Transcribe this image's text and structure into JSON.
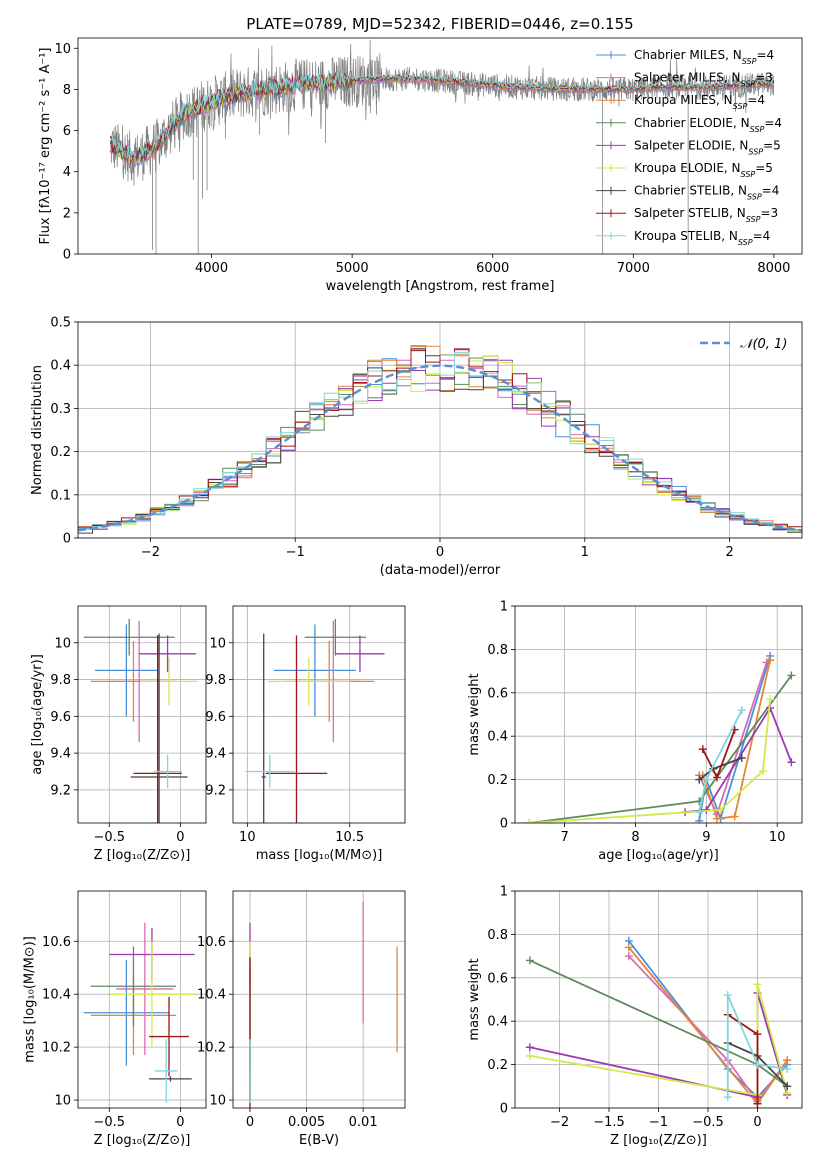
{
  "figure": {
    "title": "PLATE=0789, MJD=52342, FIBERID=0446, z=0.155",
    "colors": {
      "chabrier_miles": "#4a8fd8",
      "salpeter_miles": "#d96bb0",
      "kroupa_miles": "#e2863a",
      "chabrier_elodie": "#5e8a5e",
      "salpeter_elodie": "#9a3bb3",
      "kroupa_elodie": "#d4e84a",
      "chabrier_stelib": "#444444",
      "salpeter_stelib": "#a01515",
      "kroupa_stelib": "#7fd6de",
      "data": "#808080",
      "normal": "#5b8fd4",
      "grid": "#b0b0b0"
    }
  },
  "chart_data": [
    {
      "id": "spectrum",
      "type": "line",
      "title": "PLATE=0789, MJD=52342, FIBERID=0446, z=0.155",
      "xlabel": "wavelength [Angstrom, rest frame]",
      "ylabel": "Flux [fλ10⁻¹⁷ erg cm⁻² s⁻¹ A⁻¹]",
      "xlim": [
        3050,
        8200
      ],
      "ylim": [
        0,
        10.5
      ],
      "xticks": [
        4000,
        5000,
        6000,
        7000,
        8000
      ],
      "yticks": [
        0,
        2,
        4,
        6,
        8,
        10
      ],
      "grid": false,
      "legend_position": "right",
      "legend": [
        {
          "base": "Chabrier MILES, N",
          "sub": "SSP",
          "tail": "=4",
          "color": "chabrier_miles"
        },
        {
          "base": "Salpeter MILES, N",
          "sub": "SSP",
          "tail": "=3",
          "color": "salpeter_miles"
        },
        {
          "base": "Kroupa MILES, N",
          "sub": "SSP",
          "tail": "=4",
          "color": "kroupa_miles"
        },
        {
          "base": "Chabrier ELODIE, N",
          "sub": "SSP",
          "tail": "=4",
          "color": "chabrier_elodie"
        },
        {
          "base": "Salpeter ELODIE, N",
          "sub": "SSP",
          "tail": "=5",
          "color": "salpeter_elodie"
        },
        {
          "base": "Kroupa ELODIE, N",
          "sub": "SSP",
          "tail": "=5",
          "color": "kroupa_elodie"
        },
        {
          "base": "Chabrier STELIB, N",
          "sub": "SSP",
          "tail": "=4",
          "color": "chabrier_stelib"
        },
        {
          "base": "Salpeter STELIB, N",
          "sub": "SSP",
          "tail": "=3",
          "color": "salpeter_stelib"
        },
        {
          "base": "Kroupa STELIB, N",
          "sub": "SSP",
          "tail": "=4",
          "color": "kroupa_stelib"
        }
      ],
      "continuum": [
        [
          3280,
          5.3
        ],
        [
          3450,
          4.6
        ],
        [
          3600,
          5.2
        ],
        [
          3700,
          6.0
        ],
        [
          3800,
          6.8
        ],
        [
          3900,
          7.1
        ],
        [
          4000,
          7.4
        ],
        [
          4200,
          7.8
        ],
        [
          4400,
          8.0
        ],
        [
          4600,
          8.2
        ],
        [
          4800,
          8.3
        ],
        [
          5000,
          8.4
        ],
        [
          5200,
          8.5
        ],
        [
          5500,
          8.5
        ],
        [
          5800,
          8.3
        ],
        [
          6000,
          8.2
        ],
        [
          6200,
          8.1
        ],
        [
          6500,
          8.0
        ],
        [
          6800,
          8.0
        ],
        [
          7000,
          8.0
        ],
        [
          7200,
          8.1
        ],
        [
          7500,
          8.1
        ],
        [
          7800,
          8.2
        ],
        [
          8000,
          8.3
        ]
      ],
      "absorption_lines": [
        [
          3580,
          0.2
        ],
        [
          3605,
          0.0
        ],
        [
          3870,
          3.6
        ],
        [
          3905,
          0.0
        ],
        [
          3935,
          2.7
        ],
        [
          3968,
          3.1
        ],
        [
          4100,
          5.6
        ],
        [
          4340,
          5.8
        ],
        [
          4810,
          5.4
        ],
        [
          6780,
          0.0
        ],
        [
          7390,
          0.0
        ]
      ]
    },
    {
      "id": "residuals",
      "type": "histogram",
      "xlabel": "(data-model)/error",
      "ylabel": "Normed distribution",
      "xlim": [
        -2.5,
        2.5
      ],
      "ylim": [
        0,
        0.5
      ],
      "xticks": [
        -2,
        -1,
        0,
        1,
        2
      ],
      "yticks": [
        0.0,
        0.1,
        0.2,
        0.3,
        0.4,
        0.5
      ],
      "grid": true,
      "legend_position": "top-right",
      "normal_label": "𝒩(0, 1)",
      "bin_width": 0.1
    },
    {
      "id": "age_vs_Z",
      "type": "scatter",
      "xlabel": "Z [log₁₀(Z/Z⊙)]",
      "ylabel": "age  [log₁₀(age/yr)]",
      "xlim": [
        -0.72,
        0.18
      ],
      "ylim": [
        9.02,
        10.2
      ],
      "xticks": [
        -0.5,
        0.0
      ],
      "yticks": [
        9.2,
        9.4,
        9.6,
        9.8,
        10.0
      ],
      "grid": true,
      "points": [
        {
          "model": "chabrier_miles",
          "x": -0.38,
          "y": 9.85,
          "xerr": 0.22,
          "yerr": 0.25
        },
        {
          "model": "salpeter_miles",
          "x": -0.29,
          "y": 9.79,
          "xerr": 0.2,
          "yerr": 0.33
        },
        {
          "model": "kroupa_miles",
          "x": -0.33,
          "y": 9.79,
          "xerr": 0.3,
          "yerr": 0.22
        },
        {
          "model": "chabrier_elodie",
          "x": -0.36,
          "y": 10.03,
          "xerr": 0.32,
          "yerr": 0.1
        },
        {
          "model": "salpeter_elodie",
          "x": -0.09,
          "y": 9.94,
          "xerr": 0.2,
          "yerr": 0.1
        },
        {
          "model": "kroupa_elodie",
          "x": -0.08,
          "y": 9.79,
          "xerr": 0.2,
          "yerr": 0.13
        },
        {
          "model": "chabrier_stelib",
          "x": -0.15,
          "y": 9.27,
          "xerr": 0.2,
          "yerr": 0.78
        },
        {
          "model": "salpeter_stelib",
          "x": -0.16,
          "y": 9.29,
          "xerr": 0.17,
          "yerr": 0.75
        },
        {
          "model": "kroupa_stelib",
          "x": -0.09,
          "y": 9.3,
          "xerr": 0.1,
          "yerr": 0.09
        }
      ]
    },
    {
      "id": "age_vs_mass",
      "type": "scatter",
      "xlabel": "mass [log₁₀(M/M⊙)]",
      "ylabel": "",
      "xlim": [
        9.93,
        10.77
      ],
      "ylim": [
        9.02,
        10.2
      ],
      "xticks": [
        10.0,
        10.5
      ],
      "yticks": [
        9.2,
        9.4,
        9.6,
        9.8,
        10.0
      ],
      "grid": true,
      "points": [
        {
          "model": "chabrier_miles",
          "x": 10.33,
          "y": 9.85,
          "xerr": 0.2,
          "yerr": 0.25
        },
        {
          "model": "salpeter_miles",
          "x": 10.42,
          "y": 9.79,
          "xerr": 0.12,
          "yerr": 0.33
        },
        {
          "model": "kroupa_miles",
          "x": 10.4,
          "y": 9.79,
          "xerr": 0.22,
          "yerr": 0.22
        },
        {
          "model": "chabrier_elodie",
          "x": 10.43,
          "y": 10.03,
          "xerr": 0.15,
          "yerr": 0.1
        },
        {
          "model": "salpeter_elodie",
          "x": 10.55,
          "y": 9.94,
          "xerr": 0.12,
          "yerr": 0.1
        },
        {
          "model": "kroupa_elodie",
          "x": 10.3,
          "y": 9.79,
          "xerr": 0.2,
          "yerr": 0.13
        },
        {
          "model": "chabrier_stelib",
          "x": 10.08,
          "y": 9.27,
          "xerr": 0.01,
          "yerr": 0.78
        },
        {
          "model": "salpeter_stelib",
          "x": 10.24,
          "y": 9.29,
          "xerr": 0.15,
          "yerr": 0.75
        },
        {
          "model": "kroupa_stelib",
          "x": 10.11,
          "y": 9.3,
          "xerr": 0.12,
          "yerr": 0.09
        }
      ]
    },
    {
      "id": "weight_vs_age",
      "type": "line",
      "xlabel": "age  [log₁₀(age/yr)]",
      "ylabel": "mass weight",
      "xlim": [
        6.3,
        10.35
      ],
      "ylim": [
        0,
        1
      ],
      "xticks": [
        7,
        8,
        9,
        10
      ],
      "yticks": [
        0.0,
        0.2,
        0.4,
        0.6,
        0.8,
        1.0
      ],
      "grid": true,
      "series": [
        {
          "model": "chabrier_miles",
          "x": [
            8.9,
            9.0,
            9.2,
            9.9
          ],
          "y": [
            0.01,
            0.2,
            0.02,
            0.77
          ]
        },
        {
          "model": "salpeter_miles",
          "x": [
            8.9,
            9.15,
            9.85
          ],
          "y": [
            0.22,
            0.04,
            0.74
          ]
        },
        {
          "model": "kroupa_miles",
          "x": [
            8.95,
            9.15,
            9.4,
            9.9
          ],
          "y": [
            0.22,
            0.02,
            0.03,
            0.75
          ]
        },
        {
          "model": "chabrier_elodie",
          "x": [
            6.5,
            8.9,
            10.2
          ],
          "y": [
            0.0,
            0.1,
            0.68
          ]
        },
        {
          "model": "salpeter_elodie",
          "x": [
            8.7,
            9.0,
            9.9,
            10.2
          ],
          "y": [
            0.05,
            0.06,
            0.53,
            0.28
          ]
        },
        {
          "model": "kroupa_elodie",
          "x": [
            6.5,
            9.2,
            9.8,
            9.9
          ],
          "y": [
            0.0,
            0.06,
            0.24,
            0.57
          ]
        },
        {
          "model": "chabrier_stelib",
          "x": [
            8.9,
            9.1,
            9.5
          ],
          "y": [
            0.2,
            0.25,
            0.3
          ]
        },
        {
          "model": "salpeter_stelib",
          "x": [
            8.95,
            9.15,
            9.4
          ],
          "y": [
            0.34,
            0.21,
            0.43
          ]
        },
        {
          "model": "kroupa_stelib",
          "x": [
            8.9,
            9.0,
            9.5
          ],
          "y": [
            0.05,
            0.2,
            0.52
          ]
        }
      ]
    },
    {
      "id": "mass_vs_Z",
      "type": "scatter",
      "xlabel": "Z [log₁₀(Z/Z⊙)]",
      "ylabel": "mass [log₁₀(M/M⊙)]",
      "xlim": [
        -0.72,
        0.18
      ],
      "ylim": [
        9.97,
        10.79
      ],
      "xticks": [
        -0.5,
        0.0
      ],
      "yticks": [
        10.0,
        10.2,
        10.4,
        10.6
      ],
      "grid": true,
      "points": [
        {
          "model": "chabrier_miles",
          "x": -0.38,
          "y": 10.33,
          "xerr": 0.3,
          "yerr": 0.2
        },
        {
          "model": "salpeter_miles",
          "x": -0.25,
          "y": 10.42,
          "xerr": 0.2,
          "yerr": 0.25
        },
        {
          "model": "kroupa_miles",
          "x": -0.33,
          "y": 10.32,
          "xerr": 0.3,
          "yerr": 0.15
        },
        {
          "model": "chabrier_elodie",
          "x": -0.33,
          "y": 10.43,
          "xerr": 0.3,
          "yerr": 0.15
        },
        {
          "model": "salpeter_elodie",
          "x": -0.2,
          "y": 10.55,
          "xerr": 0.3,
          "yerr": 0.1
        },
        {
          "model": "kroupa_elodie",
          "x": -0.2,
          "y": 10.4,
          "xerr": 0.3,
          "yerr": 0.2
        },
        {
          "model": "chabrier_stelib",
          "x": -0.07,
          "y": 10.08,
          "xerr": 0.15,
          "yerr": 0.01
        },
        {
          "model": "salpeter_stelib",
          "x": -0.08,
          "y": 10.24,
          "xerr": 0.14,
          "yerr": 0.15
        },
        {
          "model": "kroupa_stelib",
          "x": -0.1,
          "y": 10.11,
          "xerr": 0.08,
          "yerr": 0.12
        }
      ]
    },
    {
      "id": "mass_vs_ebv",
      "type": "scatter",
      "xlabel": "E(B-V)",
      "ylabel": "",
      "xlim": [
        -0.0015,
        0.0137
      ],
      "ylim": [
        9.97,
        10.79
      ],
      "xticks": [
        0.0,
        0.005,
        0.01
      ],
      "yticks": [
        10.0,
        10.2,
        10.4,
        10.6
      ],
      "grid": true,
      "points": [
        {
          "model": "chabrier_miles",
          "x": 0.0,
          "y": 10.33,
          "xerr": 0,
          "yerr": 0.2
        },
        {
          "model": "salpeter_miles",
          "x": 0.01,
          "y": 10.52,
          "xerr": 0,
          "yerr": 0.23
        },
        {
          "model": "kroupa_miles",
          "x": 0.013,
          "y": 10.38,
          "xerr": 0,
          "yerr": 0.2
        },
        {
          "model": "chabrier_elodie",
          "x": 0.0,
          "y": 10.3,
          "xerr": 0,
          "yerr": 0.2
        },
        {
          "model": "salpeter_elodie",
          "x": 0.0,
          "y": 10.55,
          "xerr": 0,
          "yerr": 0.12
        },
        {
          "model": "kroupa_elodie",
          "x": 0.0,
          "y": 10.4,
          "xerr": 0,
          "yerr": 0.2
        },
        {
          "model": "chabrier_stelib",
          "x": 0.0,
          "y": 10.1,
          "xerr": 0,
          "yerr": 0.1
        },
        {
          "model": "salpeter_stelib",
          "x": 0.0,
          "y": 10.24,
          "xerr": 0,
          "yerr": 0.3
        },
        {
          "model": "kroupa_stelib",
          "x": 0.0,
          "y": 10.11,
          "xerr": 0,
          "yerr": 0.12
        }
      ]
    },
    {
      "id": "weight_vs_Z",
      "type": "line",
      "xlabel": "Z [log₁₀(Z/Z⊙)]",
      "ylabel": "mass weight",
      "xlim": [
        -2.45,
        0.45
      ],
      "ylim": [
        0,
        1
      ],
      "xticks": [
        -2.0,
        -1.5,
        -1.0,
        -0.5,
        0.0
      ],
      "yticks": [
        0.0,
        0.2,
        0.4,
        0.6,
        0.8,
        1.0
      ],
      "grid": true,
      "series": [
        {
          "model": "chabrier_miles",
          "x": [
            -1.3,
            -0.3,
            0.0,
            0.3
          ],
          "y": [
            0.77,
            0.18,
            0.05,
            0.2
          ]
        },
        {
          "model": "salpeter_miles",
          "x": [
            -1.3,
            -0.3,
            0.0,
            0.3
          ],
          "y": [
            0.7,
            0.22,
            0.03,
            0.22
          ]
        },
        {
          "model": "kroupa_miles",
          "x": [
            -1.3,
            0.0,
            0.3
          ],
          "y": [
            0.74,
            0.02,
            0.22
          ]
        },
        {
          "model": "chabrier_elodie",
          "x": [
            -2.3,
            0.0,
            0.3
          ],
          "y": [
            0.68,
            0.2,
            0.1
          ]
        },
        {
          "model": "salpeter_elodie",
          "x": [
            -2.3,
            0.0,
            0.0,
            0.3
          ],
          "y": [
            0.28,
            0.05,
            0.53,
            0.06
          ]
        },
        {
          "model": "kroupa_elodie",
          "x": [
            -2.3,
            0.0,
            0.0,
            0.3
          ],
          "y": [
            0.24,
            0.06,
            0.57,
            0.07
          ]
        },
        {
          "model": "chabrier_stelib",
          "x": [
            -0.3,
            0.0,
            0.3
          ],
          "y": [
            0.3,
            0.24,
            0.1
          ]
        },
        {
          "model": "salpeter_stelib",
          "x": [
            -0.3,
            0.0,
            0.0
          ],
          "y": [
            0.43,
            0.34,
            0.02
          ]
        },
        {
          "model": "kroupa_stelib",
          "x": [
            -0.3,
            -0.3,
            0.0,
            0.3
          ],
          "y": [
            0.05,
            0.52,
            0.2,
            0.18
          ]
        }
      ]
    }
  ]
}
